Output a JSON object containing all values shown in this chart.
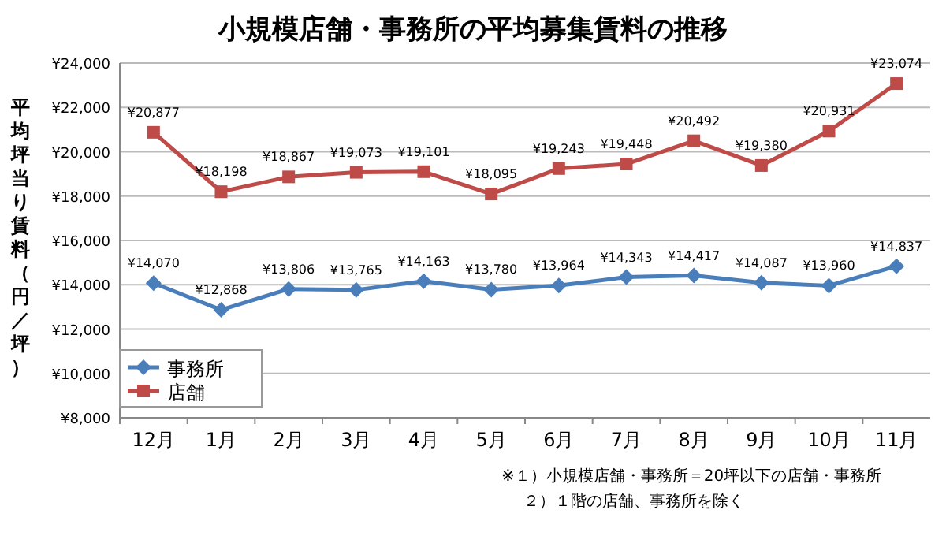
{
  "chart_data": {
    "type": "line",
    "title": "小規模店舗・事務所の平均募集賃料の推移",
    "ylabel": "平均坪当り賃料（円／坪）",
    "categories": [
      "12月",
      "1月",
      "2月",
      "3月",
      "4月",
      "5月",
      "6月",
      "7月",
      "8月",
      "9月",
      "10月",
      "11月"
    ],
    "series": [
      {
        "name": "事務所",
        "color": "#4a7ebb",
        "marker": "diamond",
        "values": [
          14070,
          12868,
          13806,
          13765,
          14163,
          13780,
          13964,
          14343,
          14417,
          14087,
          13960,
          14837
        ],
        "value_labels": [
          "¥14,070",
          "¥12,868",
          "¥13,806",
          "¥13,765",
          "¥14,163",
          "¥13,780",
          "¥13,964",
          "¥14,343",
          "¥14,417",
          "¥14,087",
          "¥13,960",
          "¥14,837"
        ]
      },
      {
        "name": "店舗",
        "color": "#be4b48",
        "marker": "square",
        "values": [
          20877,
          18198,
          18867,
          19073,
          19101,
          18095,
          19243,
          19448,
          20492,
          19380,
          20931,
          23074
        ],
        "value_labels": [
          "¥20,877",
          "¥18,198",
          "¥18,867",
          "¥19,073",
          "¥19,101",
          "¥18,095",
          "¥19,243",
          "¥19,448",
          "¥20,492",
          "¥19,380",
          "¥20,931",
          "¥23,074"
        ]
      }
    ],
    "ylim": [
      8000,
      24000
    ],
    "yticks": [
      {
        "value": 8000,
        "label": "¥8,000"
      },
      {
        "value": 10000,
        "label": "¥10,000"
      },
      {
        "value": 12000,
        "label": "¥12,000"
      },
      {
        "value": 14000,
        "label": "¥14,000"
      },
      {
        "value": 16000,
        "label": "¥16,000"
      },
      {
        "value": 18000,
        "label": "¥18,000"
      },
      {
        "value": 20000,
        "label": "¥20,000"
      },
      {
        "value": 22000,
        "label": "¥22,000"
      },
      {
        "value": 24000,
        "label": "¥24,000"
      }
    ],
    "grid": "y",
    "legend": "bottom left",
    "line_style": "solid",
    "annotations": [
      "※１）小規模店舗・事務所＝20坪以下の店舗・事務所",
      "２）１階の店舗、事務所を除く"
    ]
  }
}
